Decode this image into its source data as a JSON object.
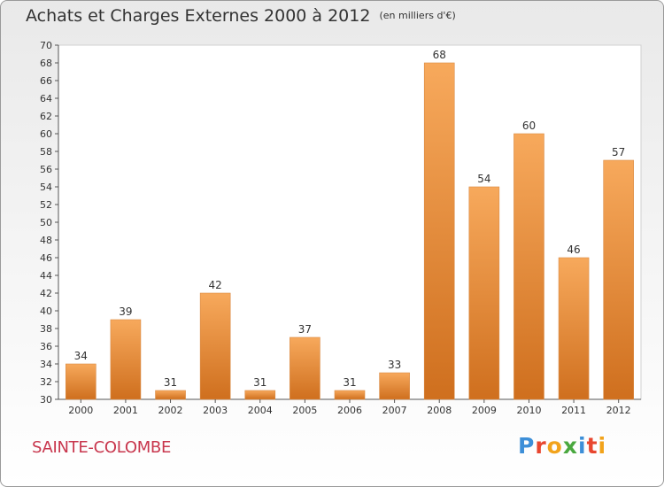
{
  "title": "Achats et Charges Externes 2000 à 2012",
  "unit": "(en milliers d'€)",
  "commune": "SAINTE-COLOMBE",
  "logo": {
    "text": "Proxiti",
    "letters": [
      {
        "ch": "P",
        "color": "#3d8fd8"
      },
      {
        "ch": "r",
        "color": "#e8462f"
      },
      {
        "ch": "o",
        "color": "#f2a31b"
      },
      {
        "ch": "x",
        "color": "#4aa83f"
      },
      {
        "ch": "i",
        "color": "#3d8fd8"
      },
      {
        "ch": "t",
        "color": "#e8462f"
      },
      {
        "ch": "i",
        "color": "#f2a31b"
      }
    ]
  },
  "colors": {
    "bar_light": "#f7a95c",
    "bar_dark": "#cf6f1e",
    "axis": "#555555",
    "grid": "#dddddd",
    "commune": "#c8364d"
  },
  "chart_data": {
    "type": "bar",
    "categories": [
      "2000",
      "2001",
      "2002",
      "2003",
      "2004",
      "2005",
      "2006",
      "2007",
      "2008",
      "2009",
      "2010",
      "2011",
      "2012"
    ],
    "values": [
      34,
      39,
      31,
      42,
      31,
      37,
      31,
      33,
      68,
      54,
      60,
      46,
      57
    ],
    "title": "Achats et Charges Externes 2000 à 2012",
    "ylim": [
      30,
      70
    ],
    "ytick_step": 2,
    "grid": false,
    "legend": "none"
  }
}
